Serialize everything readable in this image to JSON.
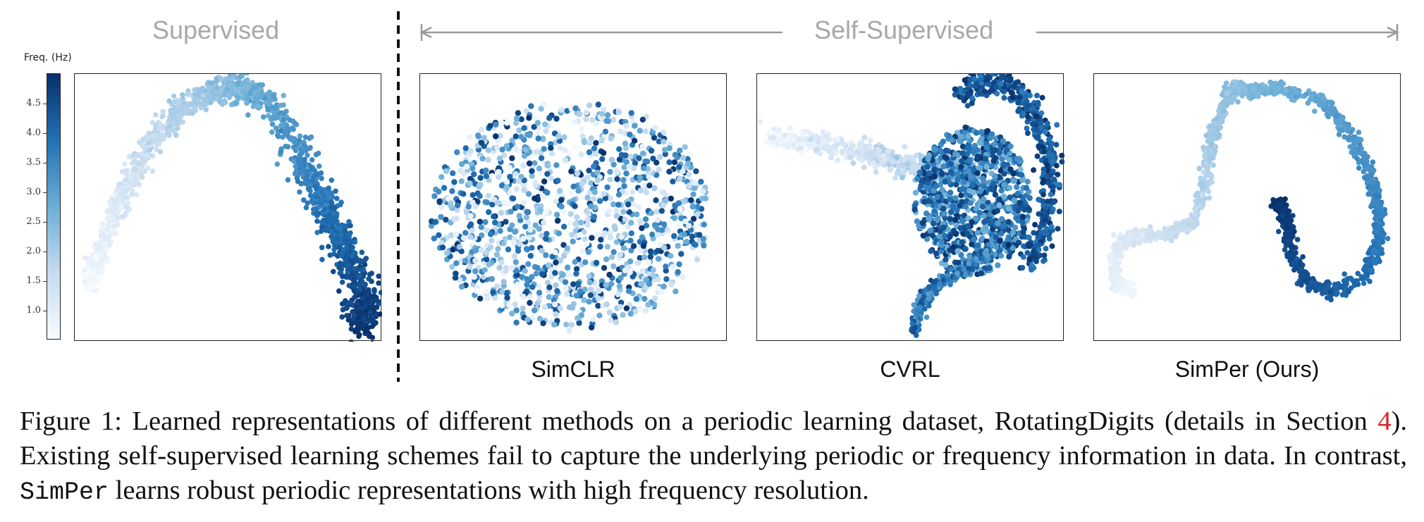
{
  "header": {
    "supervised_title": "Supervised",
    "self_supervised_title": "Self-Supervised"
  },
  "colorbar": {
    "label": "Freq. (Hz)",
    "ticks": [
      "4.5",
      "4.0",
      "3.5",
      "3.0",
      "2.5",
      "2.0",
      "1.5",
      "1.0"
    ],
    "colormap": "Blues",
    "colors": [
      "#f7fbff",
      "#c6dbef",
      "#6baed6",
      "#2171b5",
      "#08306b"
    ]
  },
  "panels": [
    {
      "id": "supervised",
      "label": "",
      "pattern": "arc"
    },
    {
      "id": "simclr",
      "label": "SimCLR",
      "pattern": "cloud"
    },
    {
      "id": "cvrl",
      "label": "CVRL",
      "pattern": "hook"
    },
    {
      "id": "simper",
      "label": "SimPer (Ours)",
      "pattern": "snake"
    }
  ],
  "caption": {
    "figure_label": "Figure 1:",
    "text_1": "Learned representations of different methods on a periodic learning dataset, RotatingDigits (details in Section ",
    "section_ref": "4",
    "text_2": "). Existing self-supervised learning schemes fail to capture the underlying periodic or frequency information in data. In contrast, ",
    "method_name": "SimPer",
    "text_3": " learns robust periodic representations with high frequency resolution."
  }
}
